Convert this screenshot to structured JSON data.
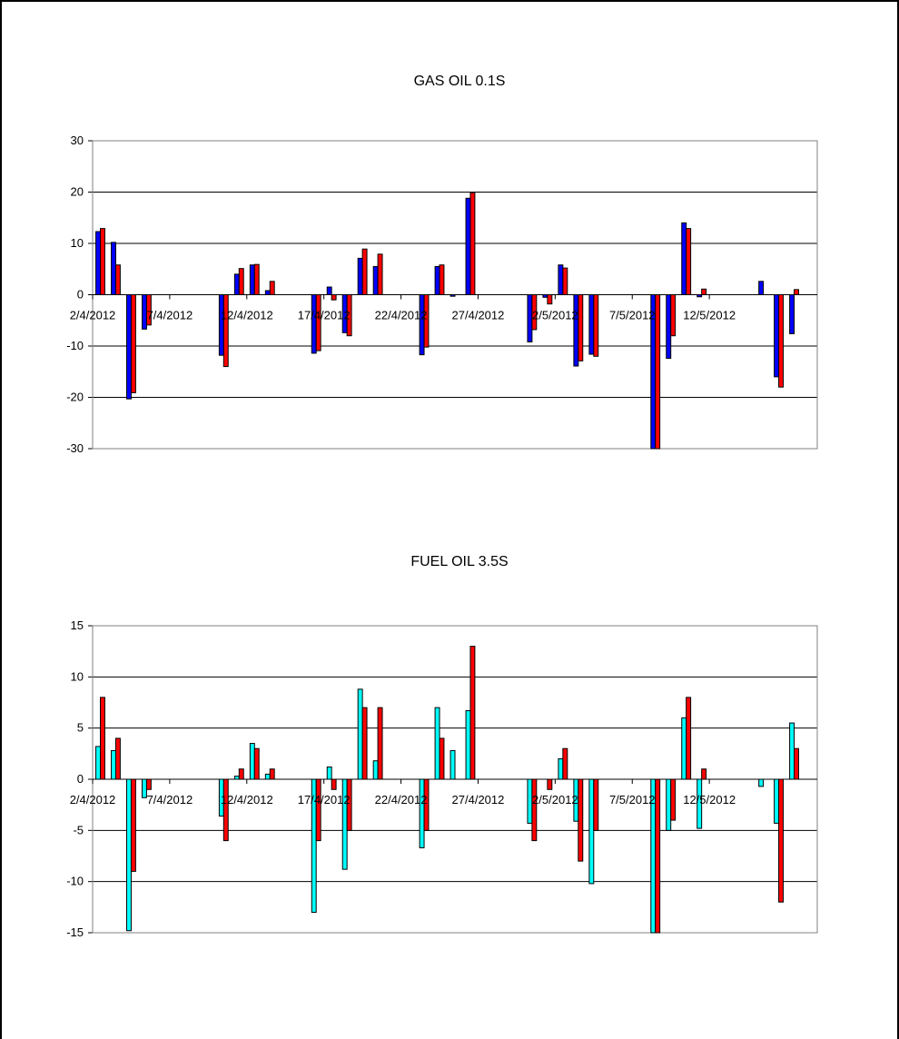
{
  "chart_data": [
    {
      "type": "bar",
      "title": "GAS OIL 0.1S",
      "xlabel": "",
      "ylabel": "",
      "ylim": [
        -30,
        30
      ],
      "yticks": [
        30,
        20,
        10,
        0,
        -10,
        -20,
        -30
      ],
      "x_axis": "date",
      "xlim": [
        "2012-04-02",
        "2012-05-18"
      ],
      "xtick_labels": [
        "2/4/2012",
        "7/4/2012",
        "12/4/2012",
        "17/4/2012",
        "22/4/2012",
        "27/4/2012",
        "2/5/2012",
        "7/5/2012",
        "12/5/2012"
      ],
      "xtick_dates": [
        "2012-04-02",
        "2012-04-07",
        "2012-04-12",
        "2012-04-17",
        "2012-04-22",
        "2012-04-27",
        "2012-05-02",
        "2012-05-07",
        "2012-05-12"
      ],
      "grid": true,
      "legend": "none",
      "dates": [
        "2012-04-02",
        "2012-04-03",
        "2012-04-04",
        "2012-04-05",
        "2012-04-10",
        "2012-04-11",
        "2012-04-12",
        "2012-04-13",
        "2012-04-16",
        "2012-04-17",
        "2012-04-18",
        "2012-04-19",
        "2012-04-20",
        "2012-04-23",
        "2012-04-24",
        "2012-04-25",
        "2012-04-26",
        "2012-04-30",
        "2012-05-01",
        "2012-05-02",
        "2012-05-03",
        "2012-05-04",
        "2012-05-08",
        "2012-05-09",
        "2012-05-10",
        "2012-05-11",
        "2012-05-15",
        "2012-05-16",
        "2012-05-17"
      ],
      "series": [
        {
          "color": "#0000ff",
          "values": [
            12.3,
            10.2,
            -20.3,
            -6.7,
            -11.8,
            4.0,
            5.8,
            0.8,
            -11.4,
            1.5,
            -7.4,
            7.1,
            5.5,
            -11.7,
            5.5,
            -0.3,
            18.8,
            -9.2,
            -0.5,
            5.8,
            -13.9,
            -11.6,
            -30.3,
            -12.4,
            14.0,
            -0.4,
            2.6,
            -16.0,
            -7.6
          ]
        },
        {
          "color": "#ff0000",
          "values": [
            12.9,
            5.8,
            -19.1,
            -5.9,
            -14.0,
            5.1,
            5.9,
            2.6,
            -10.9,
            -1.0,
            -8.0,
            8.9,
            7.9,
            -10.2,
            5.8,
            0.0,
            19.9,
            -6.8,
            -1.8,
            5.2,
            -12.9,
            -12.0,
            -30.3,
            -8.0,
            12.9,
            1.1,
            0.0,
            -18.0,
            1.0
          ]
        }
      ]
    },
    {
      "type": "bar",
      "title": "FUEL OIL 3.5S",
      "xlabel": "",
      "ylabel": "",
      "ylim": [
        -15,
        15
      ],
      "yticks": [
        15,
        10,
        5,
        0,
        -5,
        -10,
        -15
      ],
      "x_axis": "date",
      "xlim": [
        "2012-04-02",
        "2012-05-18"
      ],
      "xtick_labels": [
        "2/4/2012",
        "7/4/2012",
        "12/4/2012",
        "17/4/2012",
        "22/4/2012",
        "27/4/2012",
        "2/5/2012",
        "7/5/2012",
        "12/5/2012"
      ],
      "xtick_dates": [
        "2012-04-02",
        "2012-04-07",
        "2012-04-12",
        "2012-04-17",
        "2012-04-22",
        "2012-04-27",
        "2012-05-02",
        "2012-05-07",
        "2012-05-12"
      ],
      "grid": true,
      "legend": "none",
      "dates": [
        "2012-04-02",
        "2012-04-03",
        "2012-04-04",
        "2012-04-05",
        "2012-04-10",
        "2012-04-11",
        "2012-04-12",
        "2012-04-13",
        "2012-04-16",
        "2012-04-17",
        "2012-04-18",
        "2012-04-19",
        "2012-04-20",
        "2012-04-23",
        "2012-04-24",
        "2012-04-25",
        "2012-04-26",
        "2012-04-30",
        "2012-05-01",
        "2012-05-02",
        "2012-05-03",
        "2012-05-04",
        "2012-05-08",
        "2012-05-09",
        "2012-05-10",
        "2012-05-11",
        "2012-05-15",
        "2012-05-16",
        "2012-05-17"
      ],
      "series": [
        {
          "color": "#00ffff",
          "values": [
            3.2,
            2.8,
            -14.8,
            -1.8,
            -3.6,
            0.3,
            3.5,
            0.5,
            -13.0,
            1.2,
            -8.8,
            8.8,
            1.8,
            -6.7,
            7.0,
            2.8,
            6.7,
            -4.3,
            0.0,
            2.0,
            -4.1,
            -10.2,
            -15.3,
            -5.0,
            6.0,
            -4.8,
            -0.7,
            -4.3,
            5.5
          ]
        },
        {
          "color": "#ff0000",
          "values": [
            8.0,
            4.0,
            -9.0,
            -1.0,
            -6.0,
            1.0,
            3.0,
            1.0,
            -6.0,
            -1.0,
            -5.0,
            7.0,
            7.0,
            -5.0,
            4.0,
            0.0,
            13.0,
            -6.0,
            -1.0,
            3.0,
            -8.0,
            -5.0,
            -15.3,
            -4.0,
            8.0,
            1.0,
            0.0,
            -12.0,
            3.0
          ]
        }
      ]
    }
  ]
}
